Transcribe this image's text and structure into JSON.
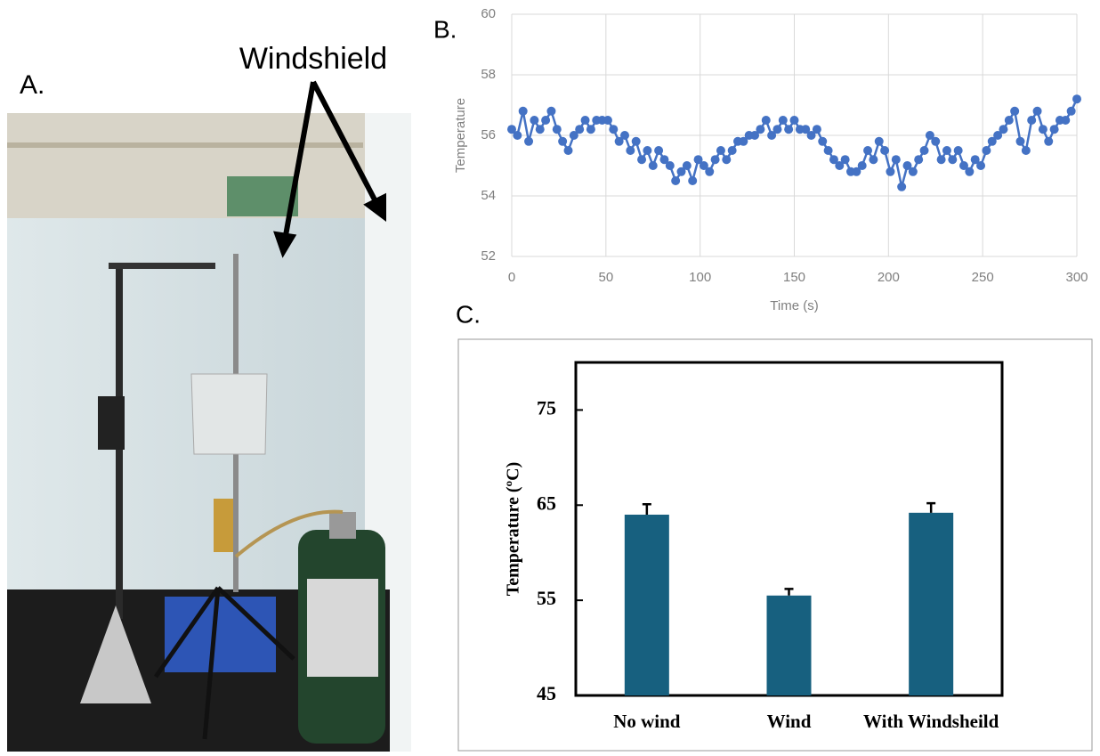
{
  "photo": {
    "label": "A.",
    "annotation": "Windshield"
  },
  "chart_data": [
    {
      "type": "line",
      "label": "B.",
      "x_label": "Time (s)",
      "y_label": "Temperature",
      "x": [
        0,
        3,
        6,
        9,
        12,
        15,
        18,
        21,
        24,
        27,
        30,
        33,
        36,
        39,
        42,
        45,
        48,
        51,
        54,
        57,
        60,
        63,
        66,
        69,
        72,
        75,
        78,
        81,
        84,
        87,
        90,
        93,
        96,
        99,
        102,
        105,
        108,
        111,
        114,
        117,
        120,
        123,
        126,
        129,
        132,
        135,
        138,
        141,
        144,
        147,
        150,
        153,
        156,
        159,
        162,
        165,
        168,
        171,
        174,
        177,
        180,
        183,
        186,
        189,
        192,
        195,
        198,
        201,
        204,
        207,
        210,
        213,
        216,
        219,
        222,
        225,
        228,
        231,
        234,
        237,
        240,
        243,
        246,
        249,
        252,
        255,
        258,
        261,
        264,
        267,
        270,
        273,
        276,
        279,
        282,
        285,
        288,
        291,
        294,
        297,
        300
      ],
      "series": [
        {
          "color": "#4472c4",
          "values": [
            56.2,
            56.0,
            56.8,
            55.8,
            56.5,
            56.2,
            56.5,
            56.8,
            56.2,
            55.8,
            55.5,
            56.0,
            56.2,
            56.5,
            56.2,
            56.5,
            56.5,
            56.5,
            56.2,
            55.8,
            56.0,
            55.5,
            55.8,
            55.2,
            55.5,
            55.0,
            55.5,
            55.2,
            55.0,
            54.5,
            54.8,
            55.0,
            54.5,
            55.2,
            55.0,
            54.8,
            55.2,
            55.5,
            55.2,
            55.5,
            55.8,
            55.8,
            56.0,
            56.0,
            56.2,
            56.5,
            56.0,
            56.2,
            56.5,
            56.2,
            56.5,
            56.2,
            56.2,
            56.0,
            56.2,
            55.8,
            55.5,
            55.2,
            55.0,
            55.2,
            54.8,
            54.8,
            55.0,
            55.5,
            55.2,
            55.8,
            55.5,
            54.8,
            55.2,
            54.3,
            55.0,
            54.8,
            55.2,
            55.5,
            56.0,
            55.8,
            55.2,
            55.5,
            55.2,
            55.5,
            55.0,
            54.8,
            55.2,
            55.0,
            55.5,
            55.8,
            56.0,
            56.2,
            56.5,
            56.8,
            55.8,
            55.5,
            56.5,
            56.8,
            56.2,
            55.8,
            56.2,
            56.5,
            56.5,
            56.8,
            57.2
          ]
        }
      ],
      "xlim": [
        0,
        300
      ],
      "xticks": [
        0,
        50,
        100,
        150,
        200,
        250,
        300
      ],
      "ylim": [
        52,
        60
      ],
      "yticks": [
        52,
        54,
        56,
        58,
        60
      ],
      "grid": true
    },
    {
      "type": "bar",
      "label": "C.",
      "y_label": "Temperature (ºC)",
      "categories": [
        "No wind",
        "Wind",
        "With Windsheild"
      ],
      "values": [
        64.0,
        55.5,
        64.2
      ],
      "errors": [
        1.1,
        0.7,
        1.0
      ],
      "color": "#17607f",
      "ylim": [
        45,
        80
      ],
      "yticks": [
        45,
        55,
        65,
        75
      ],
      "grid": false
    }
  ]
}
